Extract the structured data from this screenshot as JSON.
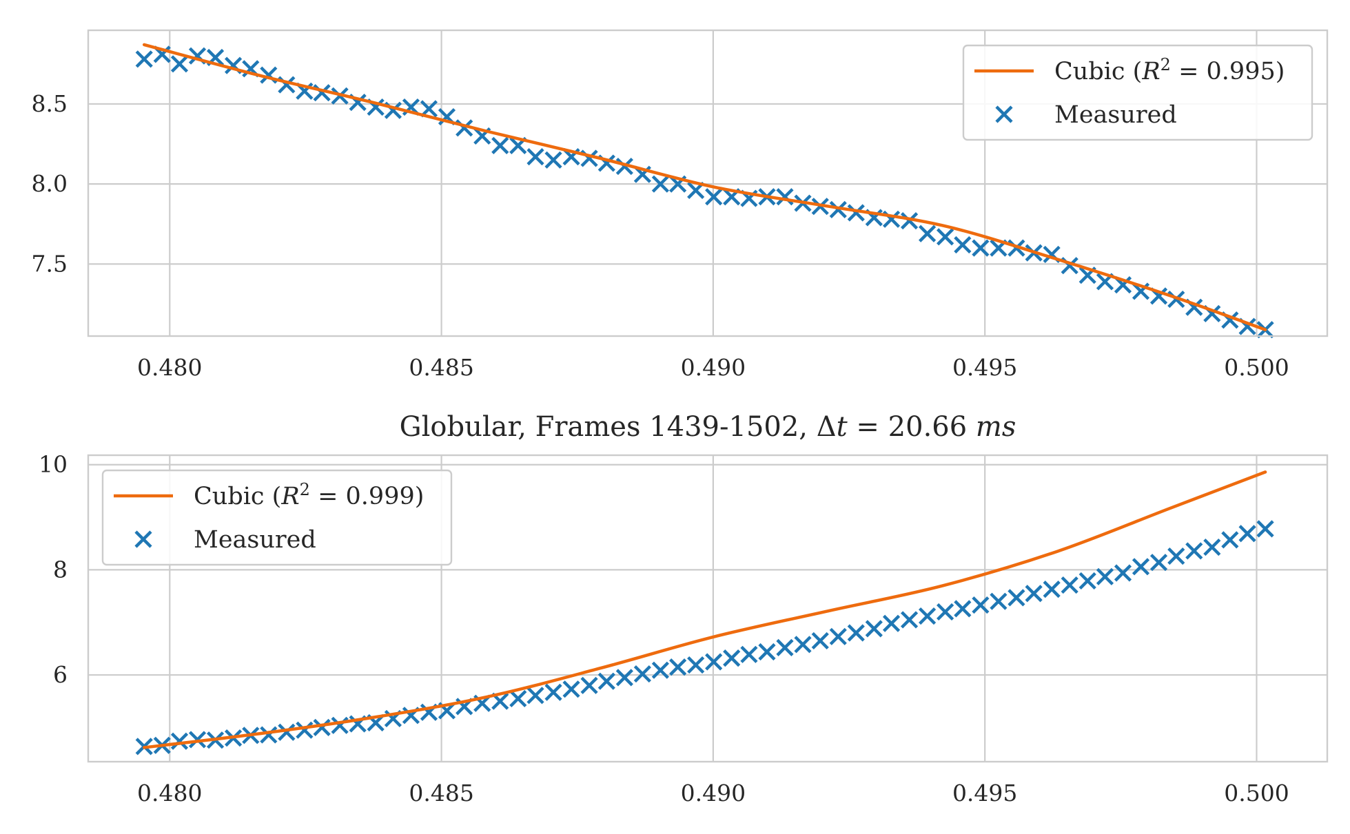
{
  "colors": {
    "fit": "#ee6b0e",
    "measured": "#1f77b4",
    "grid": "#cccccc",
    "text": "#262626"
  },
  "chart_data": [
    {
      "type": "scatter",
      "title": "",
      "xlabel": "",
      "ylabel": "",
      "xlim": [
        0.4785,
        0.5013
      ],
      "ylim": [
        7.05,
        8.96
      ],
      "xticks": [
        0.48,
        0.485,
        0.49,
        0.495,
        0.5
      ],
      "xtick_labels": [
        "0.480",
        "0.485",
        "0.490",
        "0.495",
        "0.500"
      ],
      "yticks": [
        7.5,
        8.0,
        8.5
      ],
      "ytick_labels": [
        "7.5",
        "8.0",
        "8.5"
      ],
      "grid": true,
      "legend_position": "top-right",
      "x_range": [
        0.47953,
        0.50016
      ],
      "series": [
        {
          "name": "Cubic (R² = 0.995)",
          "label_prefix": "Cubic (",
          "label_var": "R",
          "label_sup": "2",
          "label_rest": " = 0.995)",
          "kind": "line",
          "x": [
            0.47953,
            0.48163,
            0.48373,
            0.48583,
            0.48793,
            0.49003,
            0.49213,
            0.49423,
            0.49633,
            0.49843,
            0.50016
          ],
          "y": [
            8.87,
            8.68,
            8.51,
            8.33,
            8.16,
            7.98,
            7.86,
            7.74,
            7.53,
            7.3,
            7.09
          ]
        },
        {
          "name": "Measured",
          "label": "Measured",
          "kind": "scatter",
          "x": [
            0.47953,
            0.47986,
            0.48018,
            0.48051,
            0.48084,
            0.48117,
            0.48149,
            0.48182,
            0.48215,
            0.48248,
            0.4828,
            0.48313,
            0.48346,
            0.48379,
            0.48411,
            0.48444,
            0.48477,
            0.4851,
            0.48542,
            0.48575,
            0.48608,
            0.48641,
            0.48673,
            0.48706,
            0.48739,
            0.48772,
            0.48804,
            0.48837,
            0.4887,
            0.48903,
            0.48935,
            0.48968,
            0.49001,
            0.49034,
            0.49066,
            0.49099,
            0.49132,
            0.49165,
            0.49197,
            0.4923,
            0.49263,
            0.49296,
            0.49328,
            0.49361,
            0.49394,
            0.49427,
            0.49459,
            0.49492,
            0.49525,
            0.49558,
            0.4959,
            0.49623,
            0.49656,
            0.49689,
            0.49721,
            0.49754,
            0.49787,
            0.4982,
            0.49852,
            0.49885,
            0.49918,
            0.49951,
            0.49983,
            0.50016
          ],
          "y": [
            8.78,
            8.81,
            8.75,
            8.8,
            8.79,
            8.74,
            8.72,
            8.68,
            8.62,
            8.58,
            8.57,
            8.55,
            8.51,
            8.48,
            8.46,
            8.48,
            8.47,
            8.42,
            8.35,
            8.3,
            8.24,
            8.24,
            8.17,
            8.15,
            8.17,
            8.16,
            8.13,
            8.11,
            8.06,
            8.0,
            8.0,
            7.96,
            7.92,
            7.92,
            7.91,
            7.92,
            7.92,
            7.88,
            7.86,
            7.84,
            7.82,
            7.79,
            7.78,
            7.77,
            7.69,
            7.67,
            7.62,
            7.6,
            7.6,
            7.6,
            7.57,
            7.56,
            7.49,
            7.43,
            7.39,
            7.37,
            7.33,
            7.3,
            7.28,
            7.23,
            7.19,
            7.15,
            7.11,
            7.09
          ]
        }
      ]
    },
    {
      "type": "scatter",
      "title_prefix": "Globular, Frames 1439-1502, ",
      "title_delta": "Δ",
      "title_var": "t",
      "title_eq": " = 20.66 ",
      "title_unit": "ms",
      "xlabel": "",
      "ylabel": "",
      "xlim": [
        0.4785,
        0.5013
      ],
      "ylim": [
        4.35,
        10.18
      ],
      "xticks": [
        0.48,
        0.485,
        0.49,
        0.495,
        0.5
      ],
      "xtick_labels": [
        "0.480",
        "0.485",
        "0.490",
        "0.495",
        "0.500"
      ],
      "yticks": [
        6,
        8,
        10
      ],
      "ytick_labels": [
        "6",
        "8",
        "10"
      ],
      "grid": true,
      "legend_position": "top-left",
      "x_range": [
        0.47953,
        0.50016
      ],
      "series": [
        {
          "name": "Cubic (R² = 0.999)",
          "label_prefix": "Cubic (",
          "label_var": "R",
          "label_sup": "2",
          "label_rest": " = 0.999)",
          "kind": "line",
          "x": [
            0.47953,
            0.48163,
            0.48373,
            0.48583,
            0.48793,
            0.49003,
            0.49213,
            0.49423,
            0.49633,
            0.49843,
            0.50016
          ],
          "y": [
            4.62,
            4.88,
            5.19,
            5.58,
            6.13,
            6.73,
            7.22,
            7.7,
            8.35,
            9.18,
            9.86
          ]
        },
        {
          "name": "Measured",
          "label": "Measured",
          "kind": "scatter",
          "x": [
            0.47953,
            0.47986,
            0.48018,
            0.48051,
            0.48084,
            0.48117,
            0.48149,
            0.48182,
            0.48215,
            0.48248,
            0.4828,
            0.48313,
            0.48346,
            0.48379,
            0.48411,
            0.48444,
            0.48477,
            0.4851,
            0.48542,
            0.48575,
            0.48608,
            0.48641,
            0.48673,
            0.48706,
            0.48739,
            0.48772,
            0.48804,
            0.48837,
            0.4887,
            0.48903,
            0.48935,
            0.48968,
            0.49001,
            0.49034,
            0.49066,
            0.49099,
            0.49132,
            0.49165,
            0.49197,
            0.4923,
            0.49263,
            0.49296,
            0.49328,
            0.49361,
            0.49394,
            0.49427,
            0.49459,
            0.49492,
            0.49525,
            0.49558,
            0.4959,
            0.49623,
            0.49656,
            0.49689,
            0.49721,
            0.49754,
            0.49787,
            0.4982,
            0.49852,
            0.49885,
            0.49918,
            0.49951,
            0.49983,
            0.50016
          ],
          "y": [
            4.64,
            4.66,
            4.74,
            4.77,
            4.76,
            4.8,
            4.85,
            4.86,
            4.91,
            4.95,
            5.0,
            5.04,
            5.07,
            5.09,
            5.17,
            5.23,
            5.29,
            5.32,
            5.4,
            5.46,
            5.5,
            5.55,
            5.61,
            5.67,
            5.73,
            5.8,
            5.88,
            5.95,
            6.02,
            6.09,
            6.15,
            6.19,
            6.25,
            6.32,
            6.39,
            6.44,
            6.52,
            6.58,
            6.65,
            6.73,
            6.8,
            6.88,
            6.98,
            7.05,
            7.12,
            7.2,
            7.26,
            7.33,
            7.4,
            7.47,
            7.55,
            7.63,
            7.71,
            7.79,
            7.87,
            7.94,
            8.06,
            8.14,
            8.26,
            8.36,
            8.43,
            8.57,
            8.69,
            8.78
          ]
        }
      ]
    }
  ]
}
